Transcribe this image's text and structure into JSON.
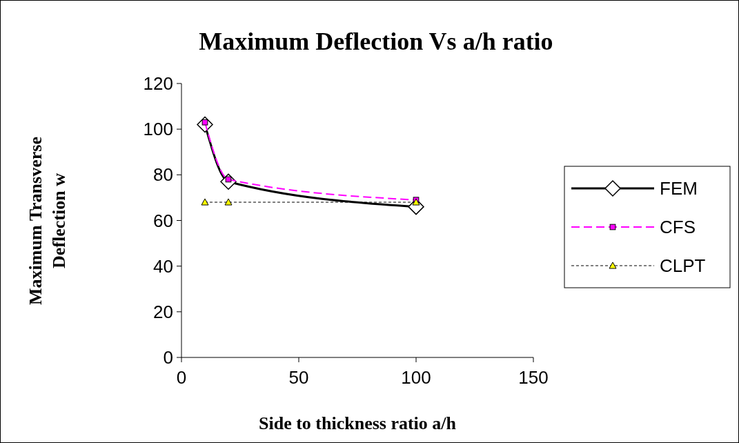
{
  "chart_data": {
    "type": "line",
    "title": "Maximum Deflection Vs a/h ratio",
    "xlabel": "Side to thickness ratio a/h",
    "ylabel": "Maximum Transverse Deflection w",
    "xlim": [
      0,
      150
    ],
    "xticks": [
      0,
      50,
      100,
      150
    ],
    "ylim": [
      0,
      120
    ],
    "yticks": [
      0,
      20,
      40,
      60,
      80,
      100,
      120
    ],
    "grid": false,
    "legend": "right",
    "series": [
      {
        "name": "FEM",
        "color": "#000000",
        "x": [
          10,
          20,
          100
        ],
        "values": [
          102,
          77,
          66
        ],
        "marker": "diamond",
        "line_style": "solid"
      },
      {
        "name": "CFS",
        "color": "#ff00ff",
        "x": [
          10,
          20,
          100
        ],
        "values": [
          103,
          78,
          69
        ],
        "marker": "square",
        "line_style": "dashed"
      },
      {
        "name": "CLPT",
        "color": "#000000",
        "x": [
          10,
          20,
          100
        ],
        "values": [
          68,
          68,
          68
        ],
        "marker": "triangle",
        "line_style": "dotted"
      }
    ]
  }
}
